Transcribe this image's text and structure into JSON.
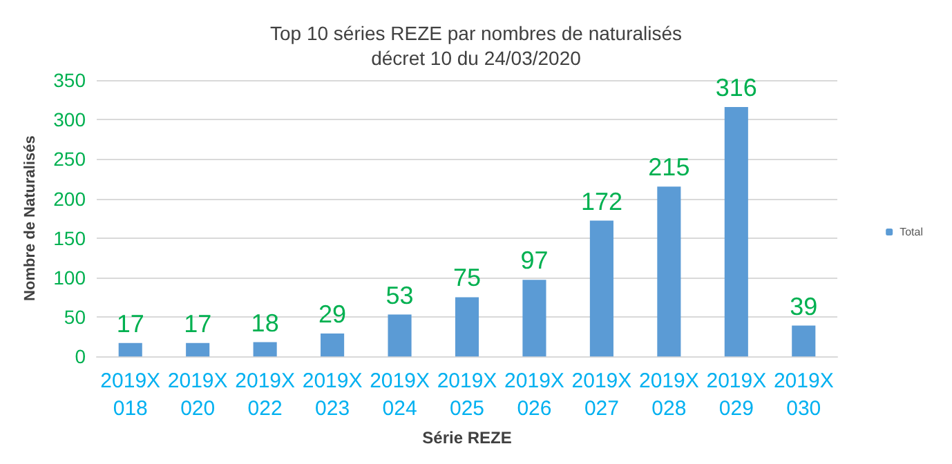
{
  "chart_data": {
    "type": "bar",
    "title": "Top 10 séries REZE par nombres de naturalisés",
    "subtitle": "décret 10 du 24/03/2020",
    "xlabel": "Série REZE",
    "ylabel": "Nombre de Naturalisés",
    "categories": [
      "2019X 018",
      "2019X 020",
      "2019X 022",
      "2019X 023",
      "2019X 024",
      "2019X 025",
      "2019X 026",
      "2019X 027",
      "2019X 028",
      "2019X 029",
      "2019X 030"
    ],
    "series": [
      {
        "name": "Total",
        "color": "#5b9bd5",
        "values": [
          17,
          17,
          18,
          29,
          53,
          75,
          97,
          172,
          215,
          316,
          39
        ]
      }
    ],
    "ylim": [
      0,
      350
    ],
    "yticks": [
      0,
      50,
      100,
      150,
      200,
      250,
      300,
      350
    ],
    "grid": "y",
    "legend": "right",
    "data_labels": true
  }
}
